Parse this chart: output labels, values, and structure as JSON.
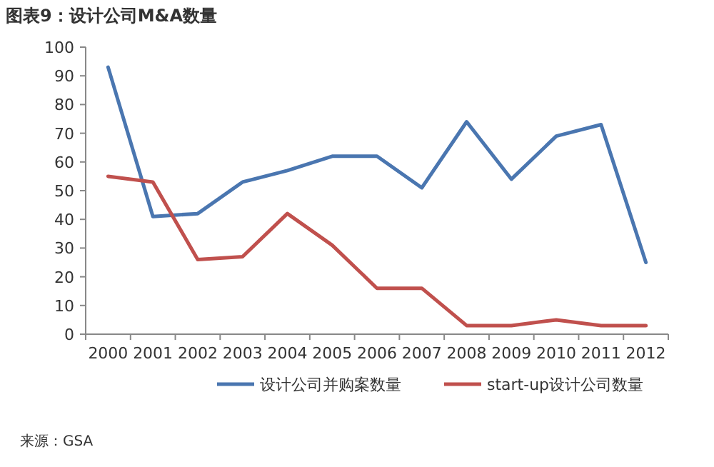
{
  "chart_data": {
    "type": "line",
    "title": "图表9：设计公司M&A数量",
    "categories": [
      "2000",
      "2001",
      "2002",
      "2003",
      "2004",
      "2005",
      "2006",
      "2007",
      "2008",
      "2009",
      "2010",
      "2011",
      "2012"
    ],
    "series": [
      {
        "name": "设计公司并购案数量",
        "color": "#4a76b0",
        "values": [
          93,
          41,
          42,
          53,
          57,
          62,
          62,
          51,
          74,
          54,
          69,
          73,
          25
        ]
      },
      {
        "name": "start-up设计公司数量",
        "color": "#c0504d",
        "values": [
          55,
          53,
          26,
          27,
          42,
          31,
          16,
          16,
          3,
          3,
          5,
          3,
          3
        ]
      }
    ],
    "ylim": [
      0,
      100
    ],
    "yticks": [
      0,
      10,
      20,
      30,
      40,
      50,
      60,
      70,
      80,
      90,
      100
    ],
    "grid": false,
    "legend": "bottom",
    "annotations": [
      "来源：GSA"
    ]
  }
}
